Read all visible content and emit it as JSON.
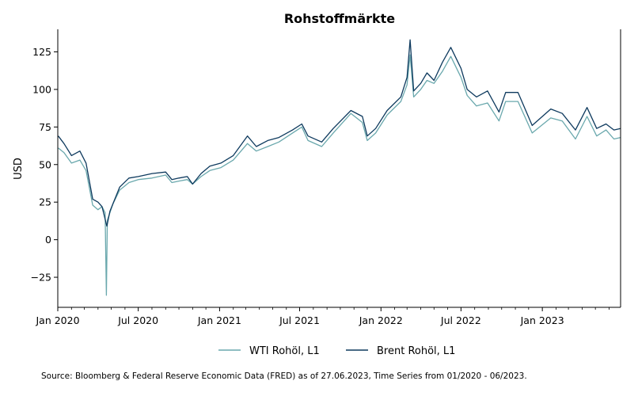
{
  "chart_data": {
    "type": "line",
    "title": "Rohstoffmärkte",
    "xlabel": "",
    "ylabel": "USD",
    "xlim": [
      "2020-01-01",
      "2023-06-27"
    ],
    "ylim": [
      -45,
      140
    ],
    "yticks": [
      -25,
      0,
      25,
      50,
      75,
      100,
      125
    ],
    "ytick_labels": [
      "−25",
      "0",
      "25",
      "50",
      "75",
      "100",
      "125"
    ],
    "xticks": [
      "2020-01-01",
      "2020-07-01",
      "2021-01-01",
      "2021-07-01",
      "2022-01-01",
      "2022-07-01",
      "2023-01-01"
    ],
    "xtick_labels": [
      "Jan 2020",
      "Jul 2020",
      "Jan 2021",
      "Jul 2021",
      "Jan 2022",
      "Jul 2022",
      "Jan 2023"
    ],
    "grid": false,
    "legend": "bottom-center",
    "series": [
      {
        "name": "WTI Rohöl, L1",
        "color": "#6aa8ad",
        "points": [
          [
            "2020-01-02",
            61
          ],
          [
            "2020-01-15",
            58
          ],
          [
            "2020-02-01",
            51
          ],
          [
            "2020-02-20",
            53
          ],
          [
            "2020-03-05",
            46
          ],
          [
            "2020-03-20",
            23
          ],
          [
            "2020-04-01",
            20
          ],
          [
            "2020-04-10",
            22
          ],
          [
            "2020-04-17",
            18
          ],
          [
            "2020-04-20",
            -37
          ],
          [
            "2020-04-22",
            13
          ],
          [
            "2020-05-05",
            24
          ],
          [
            "2020-05-20",
            33
          ],
          [
            "2020-06-10",
            38
          ],
          [
            "2020-07-01",
            40
          ],
          [
            "2020-08-01",
            41
          ],
          [
            "2020-09-01",
            43
          ],
          [
            "2020-09-15",
            38
          ],
          [
            "2020-10-01",
            39
          ],
          [
            "2020-10-20",
            40
          ],
          [
            "2020-11-01",
            37
          ],
          [
            "2020-11-20",
            42
          ],
          [
            "2020-12-10",
            46
          ],
          [
            "2021-01-04",
            48
          ],
          [
            "2021-02-01",
            53
          ],
          [
            "2021-03-05",
            64
          ],
          [
            "2021-03-25",
            59
          ],
          [
            "2021-04-20",
            62
          ],
          [
            "2021-05-15",
            65
          ],
          [
            "2021-06-15",
            71
          ],
          [
            "2021-07-06",
            75
          ],
          [
            "2021-07-20",
            66
          ],
          [
            "2021-08-20",
            62
          ],
          [
            "2021-09-15",
            71
          ],
          [
            "2021-10-25",
            84
          ],
          [
            "2021-11-20",
            78
          ],
          [
            "2021-12-01",
            66
          ],
          [
            "2021-12-20",
            71
          ],
          [
            "2022-01-15",
            83
          ],
          [
            "2022-02-15",
            92
          ],
          [
            "2022-03-01",
            103
          ],
          [
            "2022-03-08",
            123
          ],
          [
            "2022-03-16",
            95
          ],
          [
            "2022-04-01",
            100
          ],
          [
            "2022-04-15",
            106
          ],
          [
            "2022-05-01",
            104
          ],
          [
            "2022-05-20",
            112
          ],
          [
            "2022-06-08",
            122
          ],
          [
            "2022-07-01",
            108
          ],
          [
            "2022-07-15",
            96
          ],
          [
            "2022-08-05",
            89
          ],
          [
            "2022-08-30",
            91
          ],
          [
            "2022-09-25",
            79
          ],
          [
            "2022-10-10",
            92
          ],
          [
            "2022-11-07",
            92
          ],
          [
            "2022-12-09",
            71
          ],
          [
            "2023-01-20",
            81
          ],
          [
            "2023-02-15",
            79
          ],
          [
            "2023-03-17",
            67
          ],
          [
            "2023-04-12",
            82
          ],
          [
            "2023-05-04",
            69
          ],
          [
            "2023-05-25",
            73
          ],
          [
            "2023-06-12",
            67
          ],
          [
            "2023-06-27",
            68
          ]
        ]
      },
      {
        "name": "Brent Rohöl, L1",
        "color": "#0e3a5e",
        "points": [
          [
            "2020-01-02",
            69
          ],
          [
            "2020-01-15",
            64
          ],
          [
            "2020-02-01",
            56
          ],
          [
            "2020-02-20",
            59
          ],
          [
            "2020-03-05",
            51
          ],
          [
            "2020-03-20",
            27
          ],
          [
            "2020-04-01",
            25
          ],
          [
            "2020-04-10",
            22
          ],
          [
            "2020-04-21",
            9
          ],
          [
            "2020-04-28",
            19
          ],
          [
            "2020-05-20",
            35
          ],
          [
            "2020-06-10",
            41
          ],
          [
            "2020-07-01",
            42
          ],
          [
            "2020-08-01",
            44
          ],
          [
            "2020-09-01",
            45
          ],
          [
            "2020-09-15",
            40
          ],
          [
            "2020-10-01",
            41
          ],
          [
            "2020-10-20",
            42
          ],
          [
            "2020-11-01",
            37
          ],
          [
            "2020-11-20",
            44
          ],
          [
            "2020-12-10",
            49
          ],
          [
            "2021-01-04",
            51
          ],
          [
            "2021-02-01",
            56
          ],
          [
            "2021-03-05",
            69
          ],
          [
            "2021-03-25",
            62
          ],
          [
            "2021-04-20",
            66
          ],
          [
            "2021-05-15",
            68
          ],
          [
            "2021-06-15",
            73
          ],
          [
            "2021-07-06",
            77
          ],
          [
            "2021-07-20",
            69
          ],
          [
            "2021-08-20",
            65
          ],
          [
            "2021-09-15",
            74
          ],
          [
            "2021-10-25",
            86
          ],
          [
            "2021-11-20",
            82
          ],
          [
            "2021-12-01",
            69
          ],
          [
            "2021-12-20",
            74
          ],
          [
            "2022-01-15",
            86
          ],
          [
            "2022-02-15",
            95
          ],
          [
            "2022-03-01",
            108
          ],
          [
            "2022-03-08",
            133
          ],
          [
            "2022-03-16",
            99
          ],
          [
            "2022-04-01",
            104
          ],
          [
            "2022-04-15",
            111
          ],
          [
            "2022-05-01",
            106
          ],
          [
            "2022-05-20",
            118
          ],
          [
            "2022-06-08",
            128
          ],
          [
            "2022-07-01",
            114
          ],
          [
            "2022-07-15",
            100
          ],
          [
            "2022-08-05",
            95
          ],
          [
            "2022-08-30",
            99
          ],
          [
            "2022-09-25",
            85
          ],
          [
            "2022-10-10",
            98
          ],
          [
            "2022-11-07",
            98
          ],
          [
            "2022-12-09",
            76
          ],
          [
            "2023-01-20",
            87
          ],
          [
            "2023-02-15",
            84
          ],
          [
            "2023-03-17",
            73
          ],
          [
            "2023-04-12",
            88
          ],
          [
            "2023-05-04",
            74
          ],
          [
            "2023-05-25",
            77
          ],
          [
            "2023-06-12",
            73
          ],
          [
            "2023-06-27",
            74
          ]
        ]
      }
    ]
  },
  "source_note": "Source: Bloomberg & Federal Reserve Economic Data (FRED) as of 27.06.2023, Time Series from 01/2020 - 06/2023."
}
